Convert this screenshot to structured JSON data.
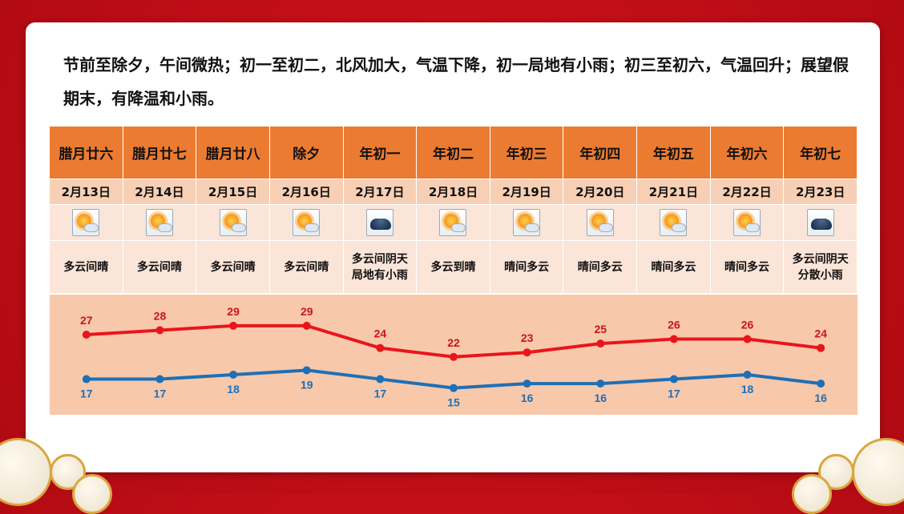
{
  "intro": "节前至除夕，午间微热；初一至初二，北风加大，气温下降，初一局地有小雨；初三至初六，气温回升；展望假期末，有降温和小雨。",
  "days": [
    {
      "lunar": "腊月廿六",
      "date": "2月13日",
      "icon": "partly-sunny-icon",
      "desc": [
        "多云间晴"
      ]
    },
    {
      "lunar": "腊月廿七",
      "date": "2月14日",
      "icon": "partly-sunny-icon",
      "desc": [
        "多云间晴"
      ]
    },
    {
      "lunar": "腊月廿八",
      "date": "2月15日",
      "icon": "partly-sunny-icon",
      "desc": [
        "多云间晴"
      ]
    },
    {
      "lunar": "除夕",
      "date": "2月16日",
      "icon": "partly-sunny-icon",
      "desc": [
        "多云间晴"
      ]
    },
    {
      "lunar": "年初一",
      "date": "2月17日",
      "icon": "dark-cloud-icon",
      "desc": [
        "多云间阴天",
        "局地有小雨"
      ]
    },
    {
      "lunar": "年初二",
      "date": "2月18日",
      "icon": "partly-sunny-icon",
      "desc": [
        "多云到晴"
      ]
    },
    {
      "lunar": "年初三",
      "date": "2月19日",
      "icon": "partly-sunny-icon",
      "desc": [
        "晴间多云"
      ]
    },
    {
      "lunar": "年初四",
      "date": "2月20日",
      "icon": "partly-sunny-icon",
      "desc": [
        "晴间多云"
      ]
    },
    {
      "lunar": "年初五",
      "date": "2月21日",
      "icon": "partly-sunny-icon",
      "desc": [
        "晴间多云"
      ]
    },
    {
      "lunar": "年初六",
      "date": "2月22日",
      "icon": "partly-sunny-icon",
      "desc": [
        "晴间多云"
      ]
    },
    {
      "lunar": "年初七",
      "date": "2月23日",
      "icon": "dark-cloud-icon",
      "desc": [
        "多云间阴天",
        "分散小雨"
      ]
    }
  ],
  "chart_data": {
    "type": "line",
    "categories": [
      "2月13日",
      "2月14日",
      "2月15日",
      "2月16日",
      "2月17日",
      "2月18日",
      "2月19日",
      "2月20日",
      "2月21日",
      "2月22日",
      "2月23日"
    ],
    "series": [
      {
        "values": [
          27,
          28,
          29,
          29,
          24,
          22,
          23,
          25,
          26,
          26,
          24
        ],
        "color": "#e8161b"
      },
      {
        "values": [
          17,
          17,
          18,
          19,
          17,
          15,
          16,
          16,
          17,
          18,
          16
        ],
        "color": "#1f6fb4"
      }
    ],
    "ylim": [
      9,
      36
    ],
    "grid": false
  },
  "colors": {
    "header": "#ec7b32",
    "date_row": "#f7cfb4",
    "body": "#fbe5d8",
    "chart_bg": "#f8c8ab",
    "background": "#c40f18"
  }
}
